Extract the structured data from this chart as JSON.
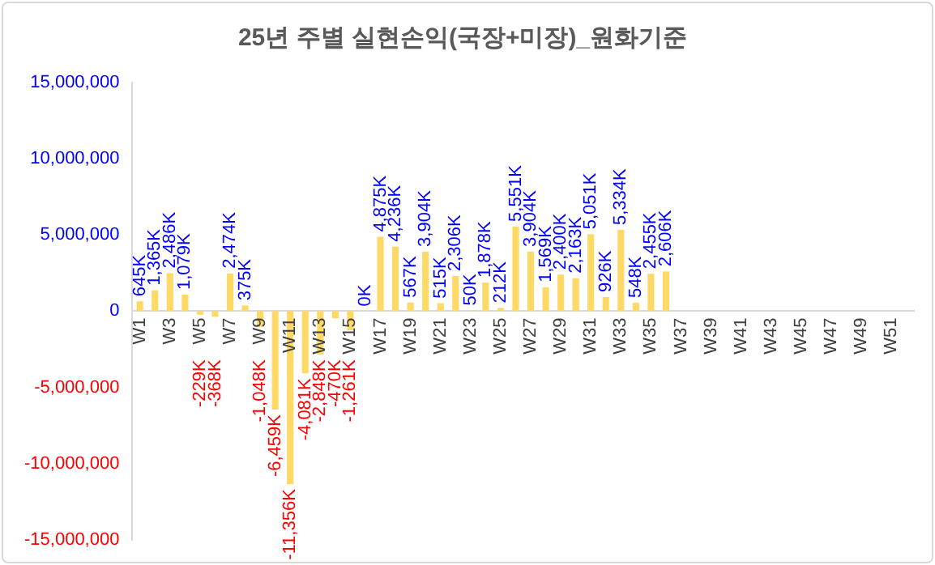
{
  "chart_data": {
    "type": "bar",
    "title": "25년 주별 실현손익(국장+미장)_원화기준",
    "categories": [
      "W1",
      null,
      "W3",
      null,
      "W5",
      null,
      "W7",
      null,
      "W9",
      null,
      "W11",
      null,
      "W13",
      null,
      "W15",
      null,
      "W17",
      null,
      "W19",
      null,
      "W21",
      null,
      "W23",
      null,
      "W25",
      null,
      "W27",
      null,
      "W29",
      null,
      "W31",
      null,
      "W33",
      null,
      "W35",
      null,
      "W37",
      null,
      "W39",
      null,
      "W41",
      null,
      "W43",
      null,
      "W45",
      null,
      "W47",
      null,
      "W49",
      null,
      "W51",
      null
    ],
    "values": [
      645000,
      1365000,
      2486000,
      1079000,
      -229000,
      -368000,
      2474000,
      375000,
      -1048000,
      -6459000,
      -11356000,
      -4081000,
      -2848000,
      -470000,
      -1261000,
      0,
      4875000,
      4236000,
      567000,
      3904000,
      515000,
      2306000,
      50000,
      1878000,
      212000,
      5551000,
      3904000,
      1569000,
      2400000,
      2163000,
      5051000,
      926000,
      5334000,
      548000,
      2455000,
      2606000,
      null,
      null,
      null,
      null,
      null,
      null,
      null,
      null,
      null,
      null,
      null,
      null,
      null,
      null,
      null,
      null
    ],
    "value_labels": [
      "645K",
      "1,365K",
      "2,486K",
      "1,079K",
      "-229K",
      "-368K",
      "2,474K",
      "375K",
      "-1,048K",
      "-6,459K",
      "-11,356K",
      "-4,081K",
      "-2,848K",
      "-470K",
      "-1,261K",
      "0K",
      "4,875K",
      "4,236K",
      "567K",
      "3,904K",
      "515K",
      "2,306K",
      "50K",
      "1,878K",
      "212K",
      "5,551K",
      "3,904K",
      "1,569K",
      "2,400K",
      "2,163K",
      "5,051K",
      "926K",
      "5,334K",
      "548K",
      "2,455K",
      "2,606K",
      null,
      null,
      null,
      null,
      null,
      null,
      null,
      null,
      null,
      null,
      null,
      null,
      null,
      null,
      null,
      null
    ],
    "color": "#ffd966",
    "ylim": [
      -15000000,
      15000000
    ],
    "yticks": [
      {
        "value": -15000000,
        "label": "-15,000,000"
      },
      {
        "value": -10000000,
        "label": "-10,000,000"
      },
      {
        "value": -5000000,
        "label": "-5,000,000"
      },
      0,
      {
        "value": 5000000,
        "label": "5,000,000"
      },
      {
        "value": 10000000,
        "label": "10,000,000"
      },
      {
        "value": 15000000,
        "label": "15,000,000"
      }
    ],
    "grid": false,
    "legend": false
  }
}
